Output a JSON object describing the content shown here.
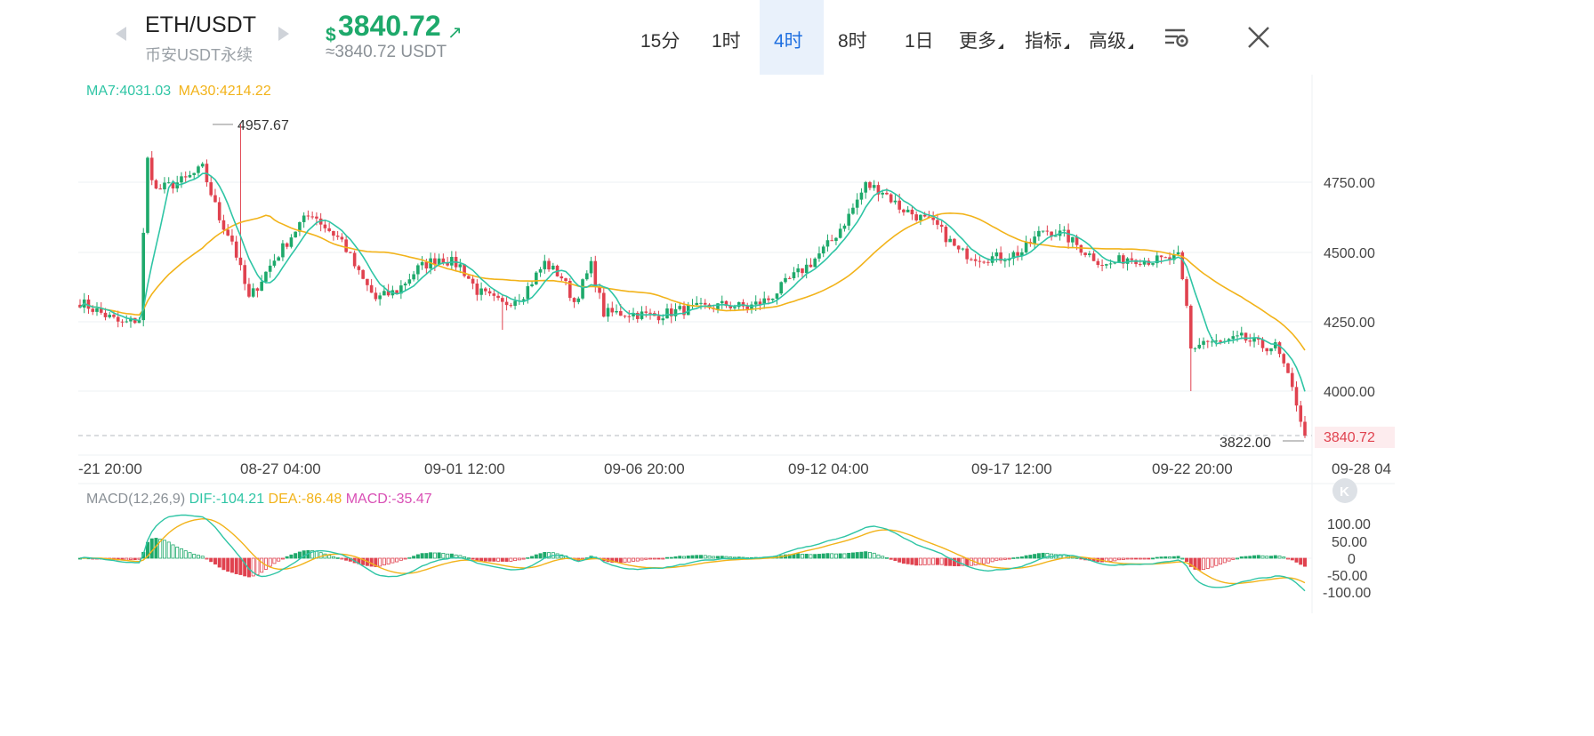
{
  "header": {
    "pair": "ETH/USDT",
    "market": "币安USDT永续",
    "price_currency": "$",
    "price": "3840.72",
    "price_usdt": "≈3840.72 USDT",
    "timeframes": [
      {
        "label": "15分",
        "active": false
      },
      {
        "label": "1时",
        "active": false
      },
      {
        "label": "4时",
        "active": true
      },
      {
        "label": "8时",
        "active": false
      },
      {
        "label": "1日",
        "active": false
      }
    ],
    "more_label": "更多",
    "indicators_label": "指标",
    "advanced_label": "高级"
  },
  "colors": {
    "up": "#1ea96b",
    "down": "#e0424f",
    "ma7": "#2fc5a5",
    "ma30": "#f2b31a",
    "macd_hist": "#d94fb5",
    "accent": "#1e6fe0"
  },
  "ma_legend": {
    "ma7": "MA7:4031.03",
    "ma30": "MA30:4214.22"
  },
  "chart_data": {
    "type": "candlestick",
    "y_ticks": [
      "4750.00",
      "4500.00",
      "4250.00",
      "4000.00"
    ],
    "x_ticks": [
      "-21 20:00",
      "08-27 04:00",
      "09-01 12:00",
      "09-06 20:00",
      "09-12 04:00",
      "09-17 12:00",
      "09-22 20:00",
      "09-28 04"
    ],
    "high_label": "4957.67",
    "low_label": "3822.00",
    "last_price_label": "3840.72",
    "close_anchors": [
      [
        0,
        4320
      ],
      [
        10,
        4240
      ],
      [
        14,
        4260
      ],
      [
        15,
        4560
      ],
      [
        16,
        4830
      ],
      [
        18,
        4720
      ],
      [
        25,
        4760
      ],
      [
        29,
        4800
      ],
      [
        33,
        4620
      ],
      [
        36,
        4540
      ],
      [
        40,
        4330
      ],
      [
        45,
        4450
      ],
      [
        52,
        4600
      ],
      [
        55,
        4640
      ],
      [
        58,
        4590
      ],
      [
        62,
        4540
      ],
      [
        66,
        4420
      ],
      [
        70,
        4330
      ],
      [
        75,
        4360
      ],
      [
        80,
        4440
      ],
      [
        85,
        4480
      ],
      [
        90,
        4450
      ],
      [
        94,
        4360
      ],
      [
        100,
        4310
      ],
      [
        105,
        4350
      ],
      [
        110,
        4460
      ],
      [
        114,
        4410
      ],
      [
        117,
        4320
      ],
      [
        121,
        4450
      ],
      [
        124,
        4280
      ],
      [
        130,
        4280
      ],
      [
        136,
        4270
      ],
      [
        142,
        4290
      ],
      [
        148,
        4300
      ],
      [
        153,
        4310
      ],
      [
        158,
        4300
      ],
      [
        163,
        4330
      ],
      [
        168,
        4400
      ],
      [
        173,
        4460
      ],
      [
        178,
        4540
      ],
      [
        182,
        4630
      ],
      [
        186,
        4740
      ],
      [
        190,
        4720
      ],
      [
        194,
        4660
      ],
      [
        198,
        4630
      ],
      [
        203,
        4590
      ],
      [
        208,
        4500
      ],
      [
        213,
        4480
      ],
      [
        218,
        4480
      ],
      [
        223,
        4500
      ],
      [
        228,
        4580
      ],
      [
        233,
        4560
      ],
      [
        238,
        4500
      ],
      [
        243,
        4450
      ],
      [
        248,
        4480
      ],
      [
        253,
        4470
      ],
      [
        257,
        4470
      ],
      [
        260,
        4480
      ],
      [
        262,
        4300
      ],
      [
        263,
        4150
      ],
      [
        266,
        4180
      ],
      [
        270,
        4170
      ],
      [
        275,
        4190
      ],
      [
        280,
        4160
      ],
      [
        283,
        4160
      ],
      [
        285,
        4090
      ],
      [
        288,
        3960
      ],
      [
        290,
        3840.72
      ]
    ],
    "candle_count": 291,
    "macd": {
      "label": "MACD(12,26,9)",
      "dif": "DIF:-104.21",
      "dea": "DEA:-86.48",
      "macd": "MACD:-35.47",
      "y_ticks": [
        "100.00",
        "50.00",
        "0",
        "-50.00",
        "-100.00"
      ]
    }
  }
}
